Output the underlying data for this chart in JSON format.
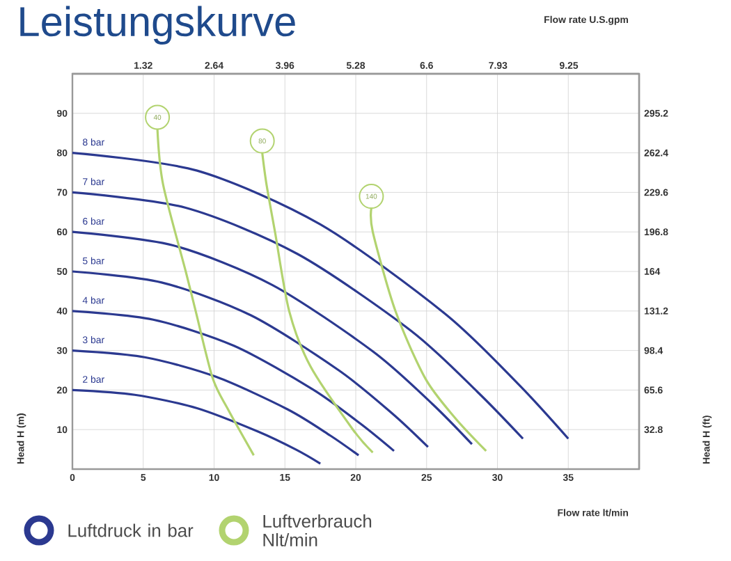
{
  "chart_data": {
    "type": "line",
    "title": "Leistungskurve",
    "xlabel": "Flow rate lt/min",
    "x2label": "Flow rate U.S.gpm",
    "ylabel": "Head H (m)",
    "y2label": "Head H (ft)",
    "xlim": [
      0,
      40
    ],
    "xticks": [
      0,
      5,
      10,
      15,
      20,
      25,
      30,
      35
    ],
    "x2lim": [
      0,
      10.56
    ],
    "x2ticks": [
      1.32,
      2.64,
      3.96,
      5.28,
      6.6,
      7.93,
      9.25
    ],
    "ylim": [
      0,
      100
    ],
    "yticks": [
      10,
      20,
      30,
      40,
      50,
      60,
      70,
      80,
      90
    ],
    "y2lim": [
      0,
      328
    ],
    "y2ticks": [
      32.8,
      65.6,
      98.4,
      131.2,
      164,
      196.8,
      229.6,
      262.4,
      295.2
    ],
    "grid": true,
    "marker": "none",
    "line_style": "solid",
    "annotations": [
      "Luftdruck in bar",
      "Luftverbrauch Nlt/min"
    ],
    "series": [
      {
        "name": "2 bar",
        "color": "#2b3990",
        "x": [
          0,
          4.4,
          8.8,
          13.1,
          15.8,
          17.5
        ],
        "values": [
          20,
          18.8,
          15.4,
          9.5,
          4.9,
          1.4
        ]
      },
      {
        "name": "3 bar",
        "color": "#2b3990",
        "x": [
          0,
          5.1,
          10.1,
          15.2,
          18.2,
          20.2
        ],
        "values": [
          30,
          28.3,
          23.4,
          15.1,
          8.5,
          3.5
        ]
      },
      {
        "name": "4 bar",
        "color": "#2b3990",
        "x": [
          0,
          5.7,
          11.4,
          17.0,
          20.4,
          22.7
        ],
        "values": [
          40,
          37.8,
          31.2,
          20.1,
          11.3,
          4.6
        ]
      },
      {
        "name": "5 bar",
        "color": "#2b3990",
        "x": [
          0,
          6.3,
          12.6,
          18.8,
          22.6,
          25.1
        ],
        "values": [
          50,
          47.2,
          38.9,
          25.0,
          14.0,
          5.6
        ]
      },
      {
        "name": "6 bar",
        "color": "#2b3990",
        "x": [
          0,
          7.1,
          14.1,
          21.2,
          25.4,
          28.2
        ],
        "values": [
          60,
          56.6,
          46.6,
          29.8,
          16.5,
          6.3
        ]
      },
      {
        "name": "7 bar",
        "color": "#2b3990",
        "x": [
          0,
          8.0,
          15.9,
          23.9,
          28.6,
          31.8
        ],
        "values": [
          70,
          66.1,
          54.4,
          35.0,
          19.5,
          7.7
        ]
      },
      {
        "name": "8 bar",
        "color": "#2b3990",
        "x": [
          0,
          8.8,
          17.5,
          26.3,
          31.5,
          35.0
        ],
        "values": [
          80,
          75.5,
          61.9,
          39.3,
          21.4,
          7.7
        ]
      },
      {
        "name": "40",
        "color": "#b2d36f",
        "x": [
          6.0,
          6.4,
          8.0,
          8.7,
          9.9,
          11.0,
          12.8
        ],
        "values": [
          86,
          72,
          50,
          40,
          23,
          15,
          3.5
        ]
      },
      {
        "name": "80",
        "color": "#b2d36f",
        "x": [
          13.4,
          13.7,
          14.3,
          15.3,
          16.8,
          19.8,
          21.2
        ],
        "values": [
          80,
          72,
          60,
          40,
          26,
          10,
          4.2
        ]
      },
      {
        "name": "140",
        "color": "#b2d36f",
        "x": [
          21.1,
          21.2,
          22.8,
          24.9,
          27.0,
          29.2
        ],
        "values": [
          66,
          60,
          40,
          23,
          13,
          4.6
        ]
      }
    ]
  }
}
